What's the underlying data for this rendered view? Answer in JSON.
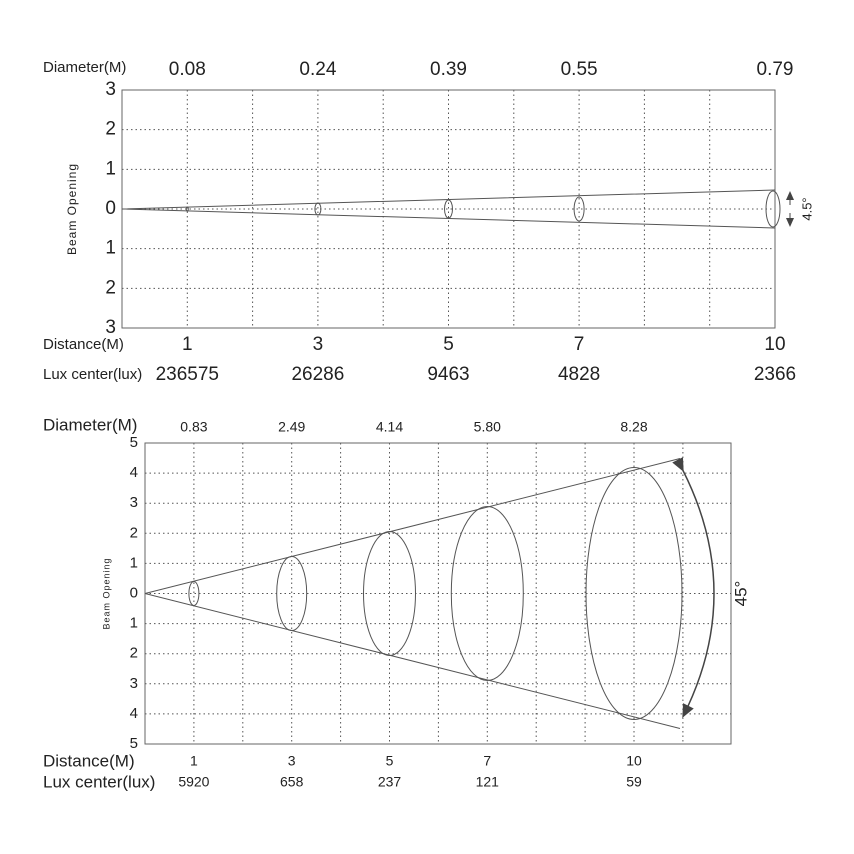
{
  "panels": [
    {
      "diameter_label": "Diameter(M)",
      "diameters": [
        "0.08",
        "0.24",
        "0.39",
        "0.55",
        "0.79"
      ],
      "y_labels": [
        "3",
        "2",
        "1",
        "0",
        "1",
        "2",
        "3"
      ],
      "axis_title": "Beam Opening",
      "distance_label": "Distance(M)",
      "distances": [
        "1",
        "3",
        "5",
        "7",
        "10"
      ],
      "lux_label": "Lux center(lux)",
      "lux": [
        "236575",
        "26286",
        "9463",
        "4828",
        "2366"
      ],
      "angle": "4.5°"
    },
    {
      "diameter_label": "Diameter(M)",
      "diameters": [
        "0.83",
        "2.49",
        "4.14",
        "5.80",
        "8.28"
      ],
      "y_labels": [
        "5",
        "4",
        "3",
        "2",
        "1",
        "0",
        "1",
        "2",
        "3",
        "4",
        "5"
      ],
      "axis_title": "Beam Opening",
      "distance_label": "Distance(M)",
      "distances": [
        "1",
        "3",
        "5",
        "7",
        "10"
      ],
      "lux_label": "Lux center(lux)",
      "lux": [
        "5920",
        "658",
        "237",
        "121",
        "59"
      ],
      "angle": "45°"
    }
  ]
}
